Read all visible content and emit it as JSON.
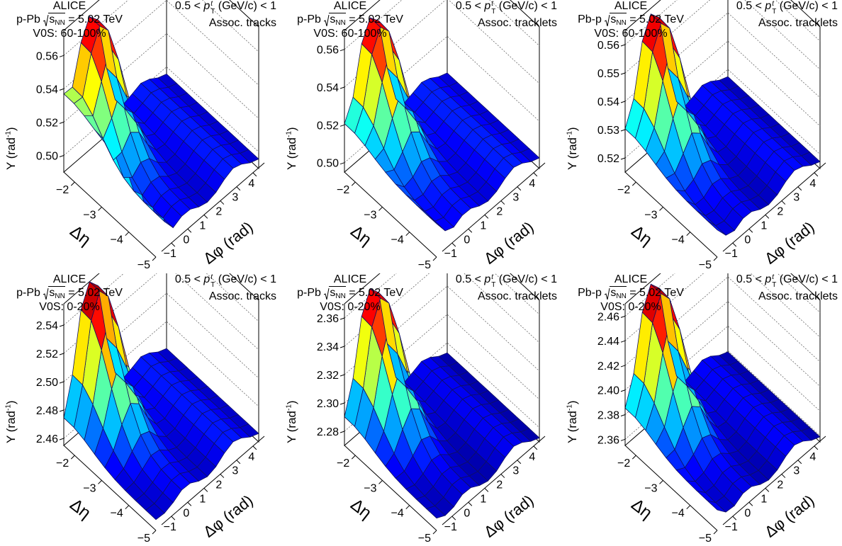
{
  "figure": {
    "panels": [
      {
        "experiment": "ALICE",
        "system": "p-Pb",
        "energy_label": "= 5.02 TeV",
        "centrality": "V0S: 60-100%",
        "pt_range": "0.5 <",
        "pt_range_tail": "(GeV/c) < 1",
        "assoc": "Assoc. tracks",
        "ylabel": "Y (rad",
        "xlabel": "Δη",
        "zlabel": "Δφ (rad)"
      },
      {
        "experiment": "ALICE",
        "system": "p-Pb",
        "energy_label": "= 5.02 TeV",
        "centrality": "V0S: 60-100%",
        "pt_range": "0.5 <",
        "pt_range_tail": "(GeV/c) < 1",
        "assoc": "Assoc. tracklets",
        "ylabel": "Y (rad",
        "xlabel": "Δη",
        "zlabel": "Δφ (rad)"
      },
      {
        "experiment": "ALICE",
        "system": "Pb-p",
        "energy_label": "= 5.02 TeV",
        "centrality": "V0S: 60-100%",
        "pt_range": "0.5 <",
        "pt_range_tail": "(GeV/c) < 1",
        "assoc": "Assoc. tracklets",
        "ylabel": "Y (rad",
        "xlabel": "Δη",
        "zlabel": "Δφ (rad)"
      },
      {
        "experiment": "ALICE",
        "system": "p-Pb",
        "energy_label": "= 5.02 TeV",
        "centrality": "V0S: 0-20%",
        "pt_range": "0.5 <",
        "pt_range_tail": "(GeV/c) < 1",
        "assoc": "Assoc. tracks",
        "ylabel": "Y (rad",
        "xlabel": "Δη",
        "zlabel": "Δφ (rad)"
      },
      {
        "experiment": "ALICE",
        "system": "p-Pb",
        "energy_label": "= 5.02 TeV",
        "centrality": "V0S: 0-20%",
        "pt_range": "0.5 <",
        "pt_range_tail": "(GeV/c) < 1",
        "assoc": "Assoc. tracklets",
        "ylabel": "Y (rad",
        "xlabel": "Δη",
        "zlabel": "Δφ (rad)"
      },
      {
        "experiment": "ALICE",
        "system": "Pb-p",
        "energy_label": "= 5.02 TeV",
        "centrality": "V0S: 0-20%",
        "pt_range": "0.5 <",
        "pt_range_tail": "(GeV/c) < 1",
        "assoc": "Assoc. tracklets",
        "ylabel": "Y (rad",
        "xlabel": "Δη",
        "zlabel": "Δφ (rad)"
      }
    ],
    "sqrt_s": "s",
    "nn_sub": "NN",
    "pt_sup": "t",
    "pt_sub": "T",
    "pt_symbol": "p",
    "ylabel_exp": "-1",
    "ylabel_close": ")"
  },
  "chart_data": [
    {
      "type": "surface",
      "title": "",
      "xlabel": "Δη",
      "ylabel": "Δφ (rad)",
      "zlabel": "Y (rad-1)",
      "x_ticks": [
        -2,
        -3,
        -4,
        -5
      ],
      "y_ticks": [
        -1,
        0,
        1,
        2,
        3,
        4
      ],
      "z_ticks": [
        0.5,
        0.52,
        0.54,
        0.56
      ],
      "zlim": [
        0.49,
        0.575
      ],
      "x_range": [
        -5,
        -1.6
      ],
      "y_range": [
        -1.6,
        4.7
      ],
      "near_side_peak": 0.57,
      "away_side_min": 0.495,
      "left_edge_max": 0.56,
      "colormap": "jet"
    },
    {
      "type": "surface",
      "title": "",
      "xlabel": "Δη",
      "ylabel": "Δφ (rad)",
      "zlabel": "Y (rad-1)",
      "x_ticks": [
        -2,
        -3,
        -4,
        -5
      ],
      "y_ticks": [
        -1,
        0,
        1,
        2,
        3,
        4
      ],
      "z_ticks": [
        0.5,
        0.52,
        0.54,
        0.56
      ],
      "zlim": [
        0.495,
        0.57
      ],
      "x_range": [
        -5,
        -1.6
      ],
      "y_range": [
        -1.6,
        4.7
      ],
      "near_side_peak": 0.565,
      "away_side_min": 0.5,
      "left_edge_max": 0.525,
      "colormap": "jet"
    },
    {
      "type": "surface",
      "title": "",
      "xlabel": "Δη",
      "ylabel": "Δφ (rad)",
      "zlabel": "Y (rad-1)",
      "x_ticks": [
        -2,
        -3,
        -4,
        -5
      ],
      "y_ticks": [
        -1,
        0,
        1,
        2,
        3,
        4
      ],
      "z_ticks": [
        0.52,
        0.53,
        0.54,
        0.55,
        0.56
      ],
      "zlim": [
        0.515,
        0.565
      ],
      "x_range": [
        -5,
        -1.6
      ],
      "y_range": [
        -1.6,
        4.7
      ],
      "near_side_peak": 0.563,
      "away_side_min": 0.517,
      "left_edge_max": 0.532,
      "colormap": "jet"
    },
    {
      "type": "surface",
      "title": "",
      "xlabel": "Δη",
      "ylabel": "Δφ (rad)",
      "zlabel": "Y (rad-1)",
      "x_ticks": [
        -2,
        -3,
        -4,
        -5
      ],
      "y_ticks": [
        -1,
        0,
        1,
        2,
        3,
        4
      ],
      "z_ticks": [
        2.46,
        2.48,
        2.5,
        2.52,
        2.54
      ],
      "zlim": [
        2.455,
        2.555
      ],
      "x_range": [
        -5,
        -1.6
      ],
      "y_range": [
        -1.6,
        4.7
      ],
      "near_side_peak": 2.555,
      "away_side_min": 2.46,
      "left_edge_max": 2.465,
      "colormap": "jet"
    },
    {
      "type": "surface",
      "title": "",
      "xlabel": "Δη",
      "ylabel": "Δφ (rad)",
      "zlabel": "Y (rad-1)",
      "x_ticks": [
        -2,
        -3,
        -4,
        -5
      ],
      "y_ticks": [
        -1,
        0,
        1,
        2,
        3,
        4
      ],
      "z_ticks": [
        2.28,
        2.3,
        2.32,
        2.34,
        2.36
      ],
      "zlim": [
        2.27,
        2.37
      ],
      "x_range": [
        -5,
        -1.6
      ],
      "y_range": [
        -1.6,
        4.7
      ],
      "near_side_peak": 2.365,
      "away_side_min": 2.272,
      "left_edge_max": 2.285,
      "colormap": "jet"
    },
    {
      "type": "surface",
      "title": "",
      "xlabel": "Δη",
      "ylabel": "Δφ (rad)",
      "zlabel": "Y (rad-1)",
      "x_ticks": [
        -2,
        -3,
        -4,
        -5
      ],
      "y_ticks": [
        -1,
        0,
        1,
        2,
        3,
        4
      ],
      "z_ticks": [
        2.36,
        2.38,
        2.4,
        2.42,
        2.44,
        2.46
      ],
      "zlim": [
        2.355,
        2.47
      ],
      "x_range": [
        -5,
        -1.6
      ],
      "y_range": [
        -1.6,
        4.7
      ],
      "near_side_peak": 2.468,
      "away_side_min": 2.358,
      "left_edge_max": 2.385,
      "colormap": "jet"
    }
  ]
}
